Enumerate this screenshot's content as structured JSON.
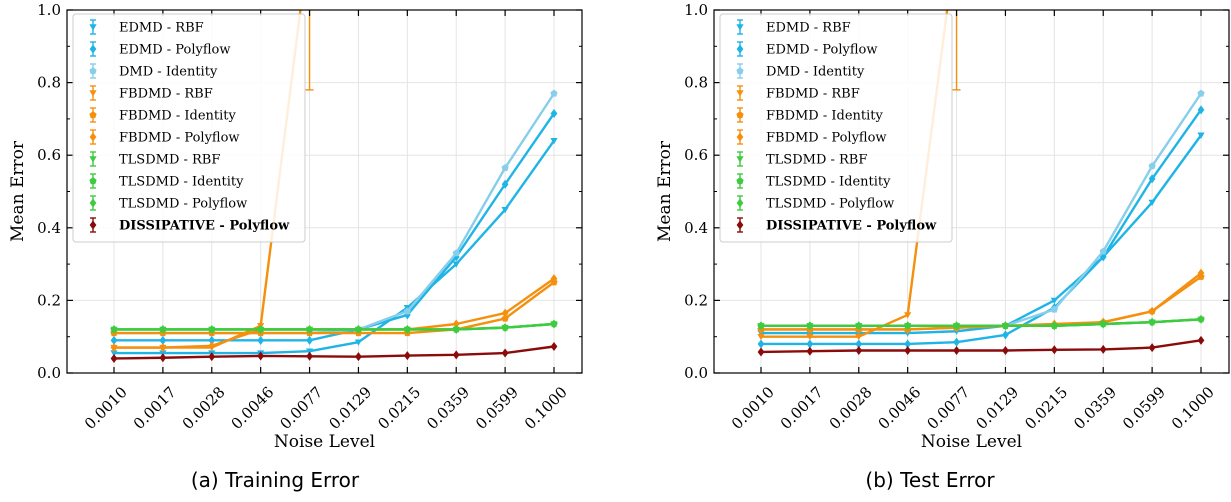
{
  "figure": {
    "panels": [
      {
        "caption": "(a) Training Error"
      },
      {
        "caption": "(b) Test Error"
      }
    ]
  },
  "chart_data": [
    {
      "type": "line",
      "xlabel": "Noise Level",
      "ylabel": "Mean Error",
      "ylim": [
        0,
        1.0
      ],
      "yticks": [
        "0.0",
        "0.2",
        "0.4",
        "0.6",
        "0.8",
        "1.0"
      ],
      "categories": [
        "0.0010",
        "0.0017",
        "0.0028",
        "0.0046",
        "0.0077",
        "0.0129",
        "0.0215",
        "0.0359",
        "0.0599",
        "0.1000"
      ],
      "grid": true,
      "legend_position": "top-left",
      "series": [
        {
          "name": "EDMD - RBF",
          "color": "#1fb4e6",
          "marker": "triangle-down",
          "values": [
            0.055,
            0.055,
            0.055,
            0.055,
            0.06,
            0.085,
            0.18,
            0.3,
            0.45,
            0.64
          ]
        },
        {
          "name": "EDMD - Polyflow",
          "color": "#1fb4e6",
          "marker": "diamond",
          "values": [
            0.09,
            0.09,
            0.09,
            0.09,
            0.09,
            0.12,
            0.16,
            0.32,
            0.52,
            0.715
          ]
        },
        {
          "name": "DMD - Identity",
          "color": "#87ceeb",
          "marker": "pentagon",
          "values": [
            0.11,
            0.11,
            0.11,
            0.11,
            0.11,
            0.12,
            0.17,
            0.33,
            0.565,
            0.77
          ]
        },
        {
          "name": "FBDMD - RBF",
          "color": "#f5900f",
          "marker": "triangle-down",
          "values": [
            0.07,
            0.07,
            0.07,
            0.13,
            1.2,
            null,
            null,
            null,
            null,
            null
          ]
        },
        {
          "name": "FBDMD - Identity",
          "color": "#f5900f",
          "marker": "pentagon",
          "values": [
            0.11,
            0.11,
            0.11,
            0.11,
            0.11,
            0.11,
            0.11,
            0.12,
            0.15,
            0.25
          ]
        },
        {
          "name": "FBDMD - Polyflow",
          "color": "#f5900f",
          "marker": "diamond",
          "values": [
            0.07,
            0.07,
            0.075,
            0.12,
            0.12,
            0.12,
            0.12,
            0.135,
            0.165,
            0.26
          ]
        },
        {
          "name": "TLSDMD - RBF",
          "color": "#3fcb3f",
          "marker": "triangle-down",
          "values": [
            0.12,
            0.12,
            0.12,
            0.12,
            0.12,
            0.12,
            0.12,
            0.12,
            0.125,
            0.135
          ]
        },
        {
          "name": "TLSDMD - Identity",
          "color": "#3fcb3f",
          "marker": "pentagon",
          "values": [
            0.12,
            0.12,
            0.12,
            0.12,
            0.12,
            0.12,
            0.12,
            0.12,
            0.125,
            0.135
          ]
        },
        {
          "name": "TLSDMD - Polyflow",
          "color": "#3fcb3f",
          "marker": "diamond",
          "values": [
            0.12,
            0.12,
            0.12,
            0.12,
            0.12,
            0.12,
            0.12,
            0.12,
            0.125,
            0.135
          ]
        },
        {
          "name": "DISSIPATIVE - Polyflow",
          "color": "#8b0a0a",
          "marker": "diamond",
          "bold": true,
          "values": [
            0.04,
            0.042,
            0.045,
            0.047,
            0.046,
            0.045,
            0.048,
            0.05,
            0.055,
            0.073
          ]
        }
      ]
    },
    {
      "type": "line",
      "xlabel": "Noise Level",
      "ylabel": "Mean Error",
      "ylim": [
        0,
        1.0
      ],
      "yticks": [
        "0.0",
        "0.2",
        "0.4",
        "0.6",
        "0.8",
        "1.0"
      ],
      "categories": [
        "0.0010",
        "0.0017",
        "0.0028",
        "0.0046",
        "0.0077",
        "0.0129",
        "0.0215",
        "0.0359",
        "0.0599",
        "0.1000"
      ],
      "grid": true,
      "legend_position": "top-left",
      "series": [
        {
          "name": "EDMD - RBF",
          "color": "#1fb4e6",
          "marker": "triangle-down",
          "values": [
            0.11,
            0.11,
            0.11,
            0.11,
            0.115,
            0.13,
            0.2,
            0.32,
            0.47,
            0.655
          ]
        },
        {
          "name": "EDMD - Polyflow",
          "color": "#1fb4e6",
          "marker": "diamond",
          "values": [
            0.08,
            0.08,
            0.08,
            0.08,
            0.085,
            0.105,
            0.18,
            0.32,
            0.535,
            0.725
          ]
        },
        {
          "name": "DMD - Identity",
          "color": "#87ceeb",
          "marker": "pentagon",
          "values": [
            0.13,
            0.13,
            0.13,
            0.13,
            0.13,
            0.13,
            0.175,
            0.335,
            0.57,
            0.77
          ]
        },
        {
          "name": "FBDMD - RBF",
          "color": "#f5900f",
          "marker": "triangle-down",
          "values": [
            0.1,
            0.1,
            0.1,
            0.16,
            1.2,
            null,
            null,
            null,
            null,
            null
          ]
        },
        {
          "name": "FBDMD - Identity",
          "color": "#f5900f",
          "marker": "pentagon",
          "values": [
            0.12,
            0.12,
            0.12,
            0.12,
            0.125,
            0.13,
            0.13,
            0.14,
            0.17,
            0.265
          ]
        },
        {
          "name": "FBDMD - Polyflow",
          "color": "#f5900f",
          "marker": "diamond",
          "values": [
            0.12,
            0.12,
            0.12,
            0.12,
            0.125,
            0.13,
            0.135,
            0.14,
            0.17,
            0.275
          ]
        },
        {
          "name": "TLSDMD - RBF",
          "color": "#3fcb3f",
          "marker": "triangle-down",
          "values": [
            0.13,
            0.13,
            0.13,
            0.13,
            0.13,
            0.13,
            0.13,
            0.135,
            0.14,
            0.148
          ]
        },
        {
          "name": "TLSDMD - Identity",
          "color": "#3fcb3f",
          "marker": "pentagon",
          "values": [
            0.13,
            0.13,
            0.13,
            0.13,
            0.13,
            0.13,
            0.13,
            0.135,
            0.14,
            0.148
          ]
        },
        {
          "name": "TLSDMD - Polyflow",
          "color": "#3fcb3f",
          "marker": "diamond",
          "values": [
            0.13,
            0.13,
            0.13,
            0.13,
            0.13,
            0.13,
            0.13,
            0.135,
            0.14,
            0.148
          ]
        },
        {
          "name": "DISSIPATIVE - Polyflow",
          "color": "#8b0a0a",
          "marker": "diamond",
          "bold": true,
          "values": [
            0.058,
            0.06,
            0.062,
            0.062,
            0.062,
            0.062,
            0.064,
            0.065,
            0.07,
            0.09
          ]
        }
      ]
    }
  ]
}
